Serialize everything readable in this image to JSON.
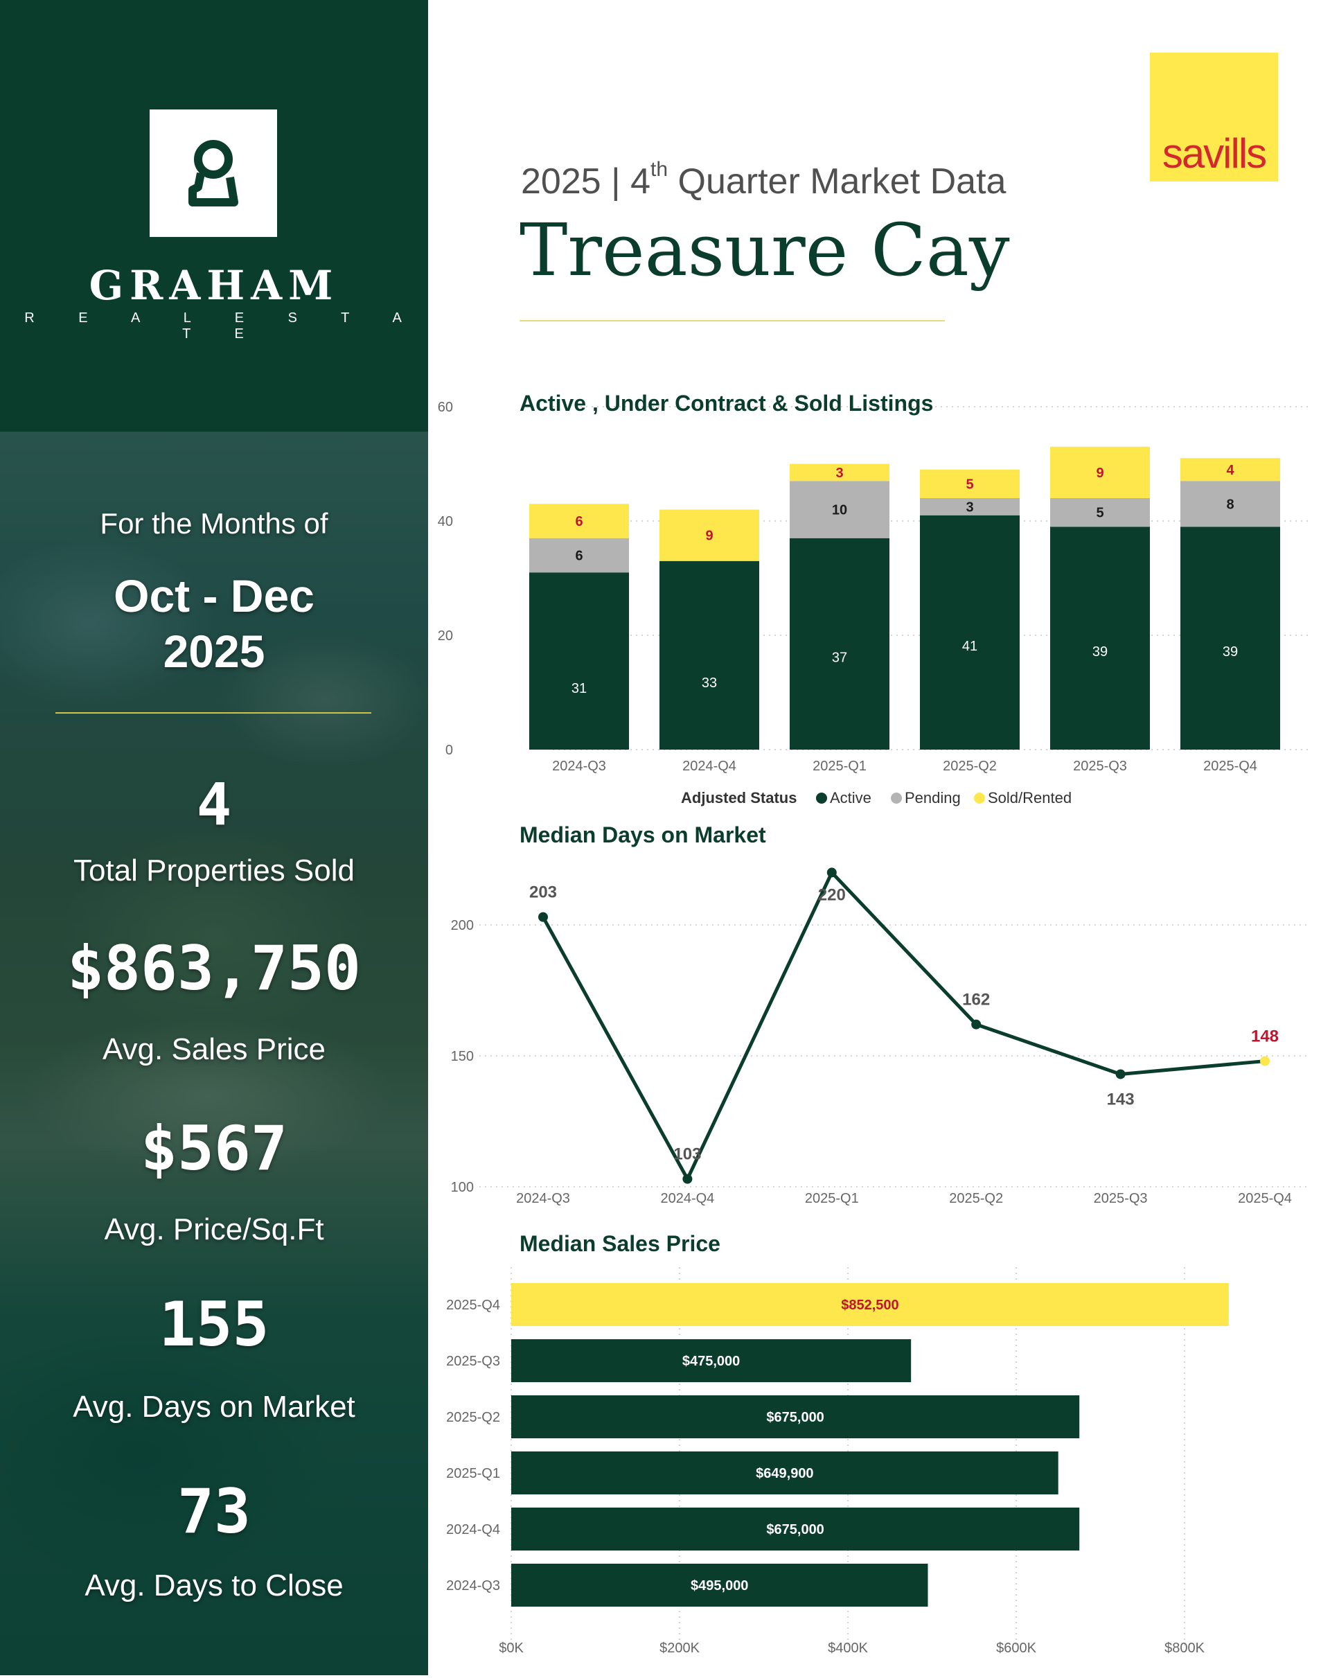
{
  "brand": {
    "name": "GRAHAM",
    "tagline": "R E A L   E S T A T E",
    "partner_logo": "savills"
  },
  "header": {
    "subtitle_year": "2025 | 4",
    "subtitle_sup": "th",
    "subtitle_rest": " Quarter Market Data",
    "title": "Treasure Cay"
  },
  "sidebar": {
    "months_label": "For the Months of",
    "months_range": "Oct - Dec",
    "months_year": "2025",
    "stats": [
      {
        "value": "4",
        "label": "Total Properties Sold"
      },
      {
        "value": "$863,750",
        "label": "Avg. Sales Price"
      },
      {
        "value": "$567",
        "label": "Avg. Price/Sq.Ft"
      },
      {
        "value": "155",
        "label": "Avg. Days on Market"
      },
      {
        "value": "73",
        "label": "Avg. Days to Close"
      }
    ]
  },
  "colors": {
    "dark_green": "#0b3d2c",
    "gray": "#b3b3b3",
    "yellow": "#fde74c",
    "red_label": "#c0152f"
  },
  "chart_data": [
    {
      "type": "bar",
      "stacked": true,
      "title": "Active , Under Contract & Sold Listings",
      "categories": [
        "2024-Q3",
        "2024-Q4",
        "2025-Q1",
        "2025-Q2",
        "2025-Q3",
        "2025-Q4"
      ],
      "series": [
        {
          "name": "Active",
          "color": "#0b3d2c",
          "values": [
            31,
            33,
            37,
            41,
            39,
            39
          ]
        },
        {
          "name": "Pending",
          "color": "#b3b3b3",
          "values": [
            6,
            0,
            10,
            3,
            5,
            8
          ]
        },
        {
          "name": "Sold/Rented",
          "color": "#fde74c",
          "values": [
            6,
            9,
            3,
            5,
            9,
            4
          ]
        }
      ],
      "legend_title": "Adjusted Status",
      "legend_position": "bottom",
      "yticks": [
        0,
        20,
        40,
        60
      ],
      "ylim": [
        0,
        60
      ],
      "grid": true
    },
    {
      "type": "line",
      "title": "Median Days on Market",
      "categories": [
        "2024-Q3",
        "2024-Q4",
        "2025-Q1",
        "2025-Q2",
        "2025-Q3",
        "2025-Q4"
      ],
      "values": [
        203,
        103,
        220,
        162,
        143,
        148
      ],
      "yticks": [
        100,
        150,
        200
      ],
      "ylim": [
        100,
        220
      ],
      "grid": true
    },
    {
      "type": "bar",
      "orientation": "horizontal",
      "title": "Median Sales Price",
      "categories": [
        "2025-Q4",
        "2025-Q3",
        "2025-Q2",
        "2025-Q1",
        "2024-Q4",
        "2024-Q3"
      ],
      "values": [
        852500,
        475000,
        675000,
        649900,
        675000,
        495000
      ],
      "labels": [
        "$852,500",
        "$475,000",
        "$675,000",
        "$649,900",
        "$675,000",
        "$495,000"
      ],
      "xticks": [
        0,
        200000,
        400000,
        600000,
        800000
      ],
      "xtick_labels": [
        "$0K",
        "$200K",
        "$400K",
        "$600K",
        "$800K"
      ],
      "grid": true
    }
  ]
}
